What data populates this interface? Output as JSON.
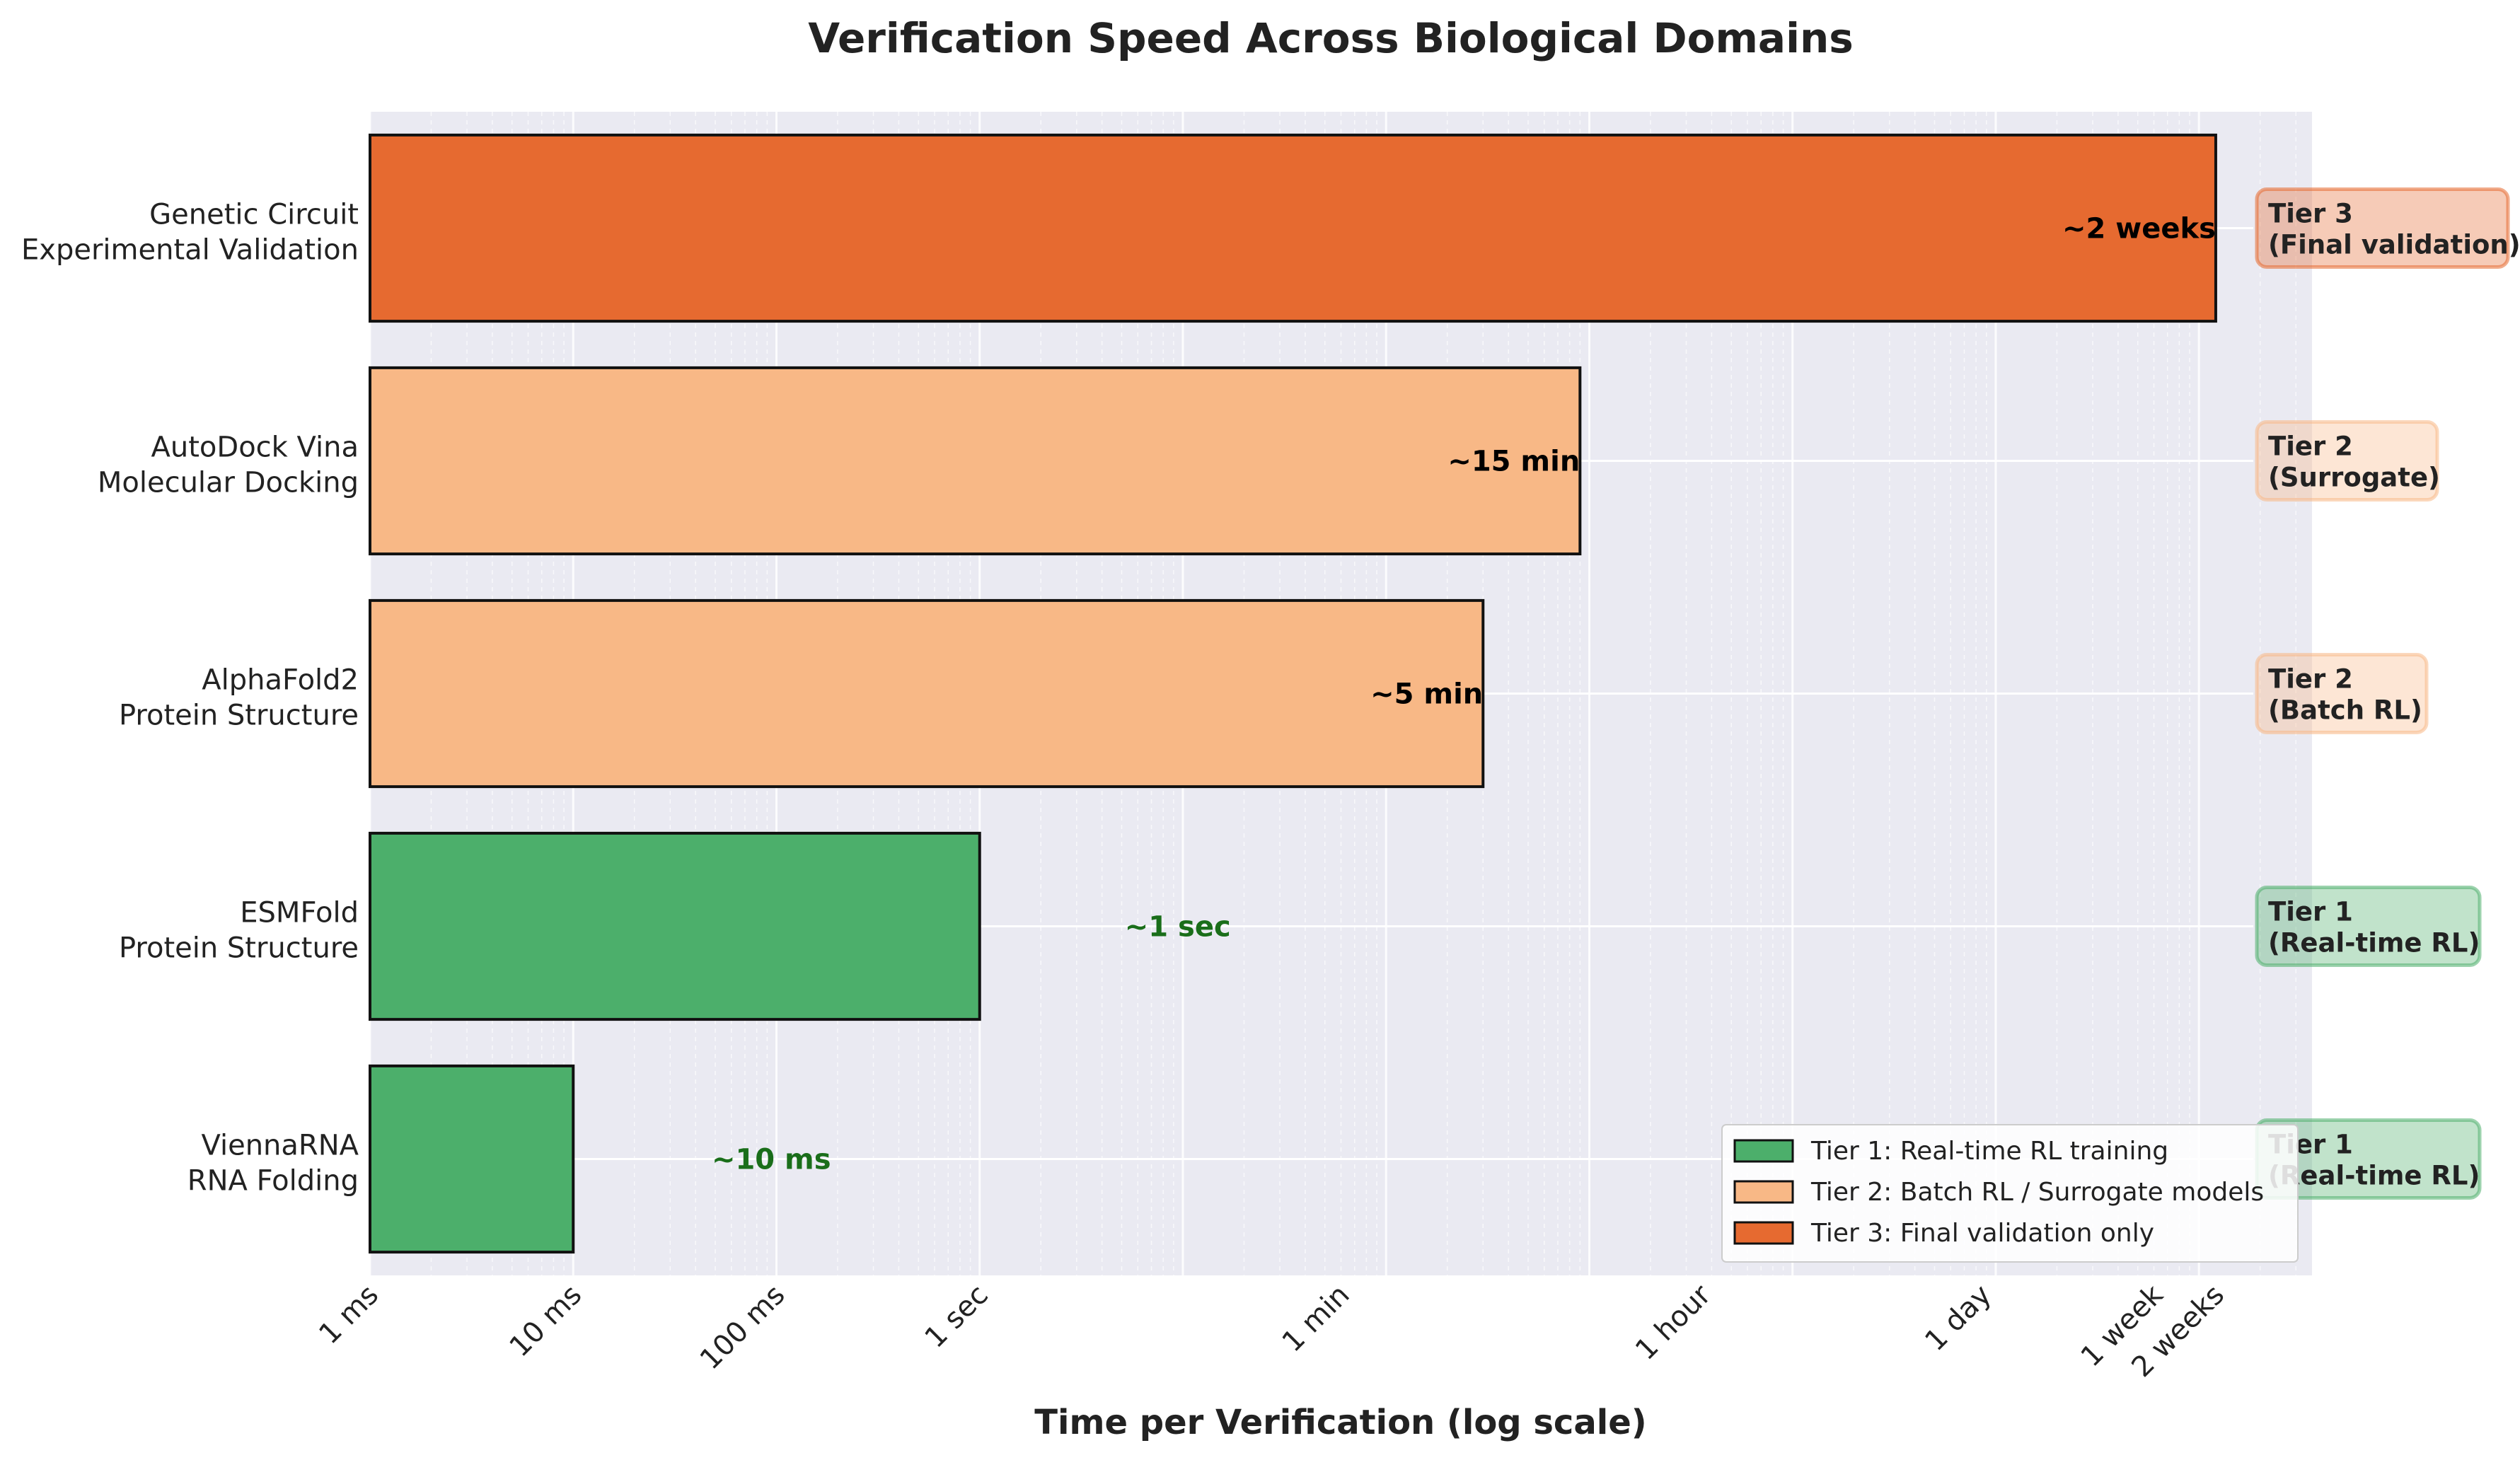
{
  "chart_data": {
    "type": "bar",
    "orientation": "horizontal",
    "title": "Verification Speed Across Biological Domains",
    "xlabel": "Time per Verification (log scale)",
    "ylabel": "",
    "x_scale": "log",
    "x_unit": "seconds",
    "xlim": [
      0.001,
      3600000
    ],
    "x_ticks": [
      {
        "value": 0.001,
        "label": "1 ms"
      },
      {
        "value": 0.01,
        "label": "10 ms"
      },
      {
        "value": 0.1,
        "label": "100 ms"
      },
      {
        "value": 1,
        "label": "1 sec"
      },
      {
        "value": 60,
        "label": "1 min"
      },
      {
        "value": 3600,
        "label": "1 hour"
      },
      {
        "value": 86400,
        "label": "1 day"
      },
      {
        "value": 604800,
        "label": "1 week"
      },
      {
        "value": 1209600,
        "label": "2 weeks"
      }
    ],
    "grid": true,
    "legend_position": "bottom-right",
    "legend": [
      {
        "tier": 1,
        "label": "Tier 1: Real-time RL training"
      },
      {
        "tier": 2,
        "label": "Tier 2: Batch RL / Surrogate models"
      },
      {
        "tier": 3,
        "label": "Tier 3: Final validation only"
      }
    ],
    "tier_colors": {
      "1": "#4caf6b",
      "2": "#f8b886",
      "3": "#e66a30"
    },
    "tier_label_colors": {
      "1": "#1a6e1a",
      "2": "#000000",
      "3": "#000000"
    },
    "bars": [
      {
        "category_line1": "Genetic Circuit",
        "category_line2": "Experimental Validation",
        "value": 1209600,
        "value_label": "~2 weeks",
        "tier": 3,
        "tag_line1": "Tier 3",
        "tag_line2": "(Final validation)"
      },
      {
        "category_line1": "AutoDock Vina",
        "category_line2": "Molecular Docking",
        "value": 900,
        "value_label": "~15 min",
        "tier": 2,
        "tag_line1": "Tier 2",
        "tag_line2": "(Surrogate)"
      },
      {
        "category_line1": "AlphaFold2",
        "category_line2": "Protein Structure",
        "value": 300,
        "value_label": "~5 min",
        "tier": 2,
        "tag_line1": "Tier 2",
        "tag_line2": "(Batch RL)"
      },
      {
        "category_line1": "ESMFold",
        "category_line2": "Protein Structure",
        "value": 1,
        "value_label": "~1 sec",
        "tier": 1,
        "tag_line1": "Tier 1",
        "tag_line2": "(Real-time RL)"
      },
      {
        "category_line1": "ViennaRNA",
        "category_line2": "RNA Folding",
        "value": 0.01,
        "value_label": "~10 ms",
        "tier": 1,
        "tag_line1": "Tier 1",
        "tag_line2": "(Real-time RL)"
      }
    ]
  }
}
